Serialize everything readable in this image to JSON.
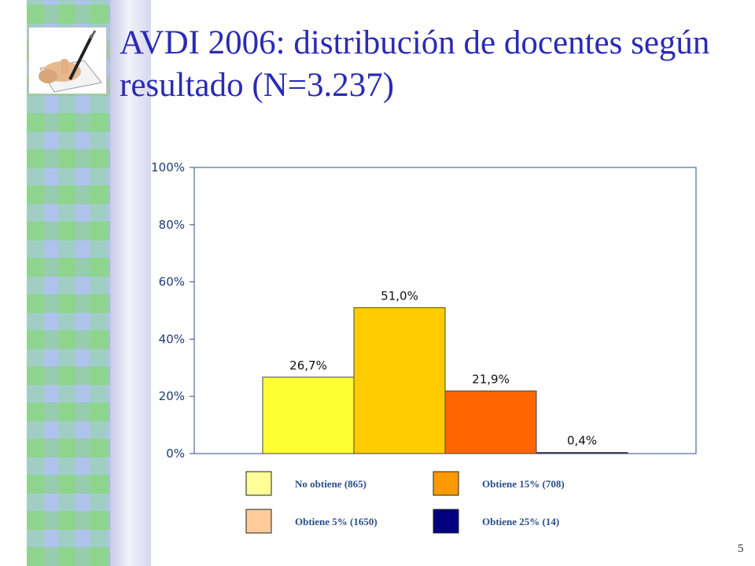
{
  "slide": {
    "title": "AVDI 2006: distribución de docentes según resultado (N=3.237)",
    "number": "5"
  },
  "icons": {
    "logo": "hand-writing-icon"
  },
  "colors": {
    "title": "#2b2bb5",
    "axis": "#1f3a78",
    "legend_text": "#2a4f8a"
  },
  "chart_data": {
    "type": "bar",
    "categories": [
      "No obtiene (865)",
      "Obtiene 5% (1650)",
      "Obtiene 15% (708)",
      "Obtiene 25% (14)"
    ],
    "values": [
      26.7,
      51.0,
      21.9,
      0.4
    ],
    "data_labels": [
      "26,7%",
      "51,0%",
      "21,9%",
      "0,4%"
    ],
    "bar_colors": [
      "#ffff33",
      "#ffcc00",
      "#ff6600",
      "#0a2a8a"
    ],
    "ylim": [
      0,
      100
    ],
    "yticks": [
      0,
      20,
      40,
      60,
      80,
      100
    ],
    "ytick_labels": [
      "0%",
      "20%",
      "40%",
      "60%",
      "80%",
      "100%"
    ],
    "legend": {
      "placement": "bottom",
      "items": [
        {
          "label": "No obtiene (865)",
          "color": "#ffff99"
        },
        {
          "label": "Obtiene 15% (708)",
          "color": "#ff9900"
        },
        {
          "label": "Obtiene 5% (1650)",
          "color": "#ffcc99"
        },
        {
          "label": "Obtiene 25% (14)",
          "color": "#000080"
        }
      ]
    }
  }
}
